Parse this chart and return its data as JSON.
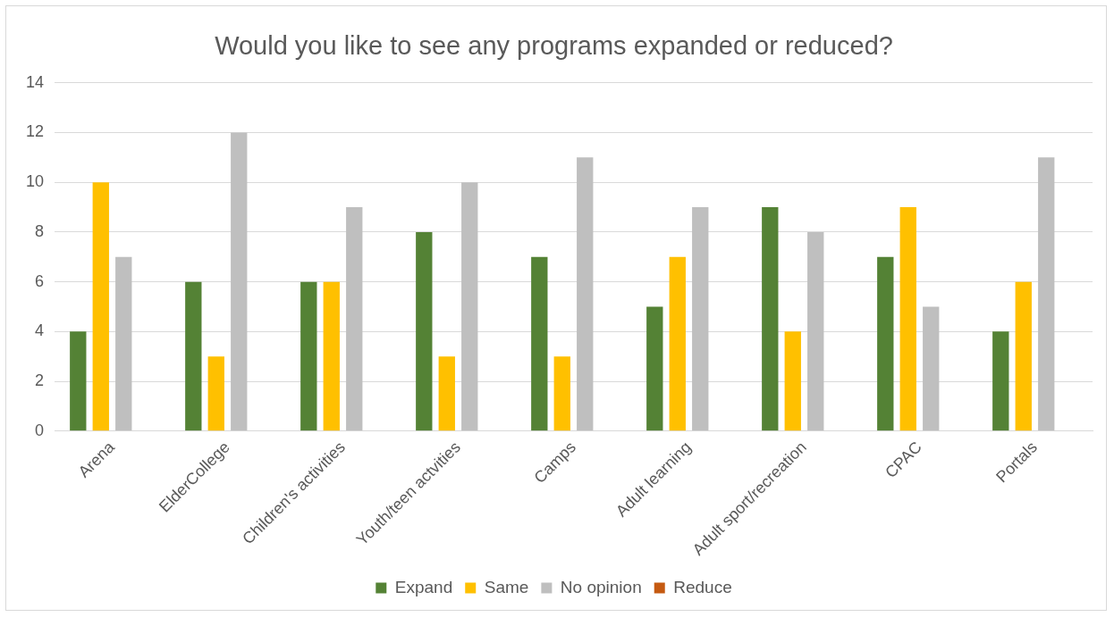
{
  "chart_data": {
    "type": "bar",
    "title": "Would you like to see any programs expanded or reduced?",
    "categories": [
      "Arena",
      "ElderCollege",
      "Children's activities",
      "Youth/teen actvities",
      "Camps",
      "Adult learning",
      "Adult sport/recreation",
      "CPAC",
      "Portals"
    ],
    "series": [
      {
        "name": "Expand",
        "color": "#548235",
        "values": [
          4,
          6,
          6,
          8,
          7,
          5,
          9,
          7,
          4
        ]
      },
      {
        "name": "Same",
        "color": "#ffc000",
        "values": [
          10,
          3,
          6,
          3,
          3,
          7,
          4,
          9,
          6
        ]
      },
      {
        "name": "No opinion",
        "color": "#bfbfbf",
        "values": [
          7,
          12,
          9,
          10,
          11,
          9,
          8,
          5,
          11
        ]
      },
      {
        "name": "Reduce",
        "color": "#c55a11",
        "values": [
          0,
          0,
          0,
          0,
          0,
          0,
          0,
          0,
          0
        ]
      }
    ],
    "ylim": [
      0,
      14
    ],
    "yticks": [
      0,
      2,
      4,
      6,
      8,
      10,
      12,
      14
    ],
    "grid": "y",
    "legend": "bottom"
  }
}
